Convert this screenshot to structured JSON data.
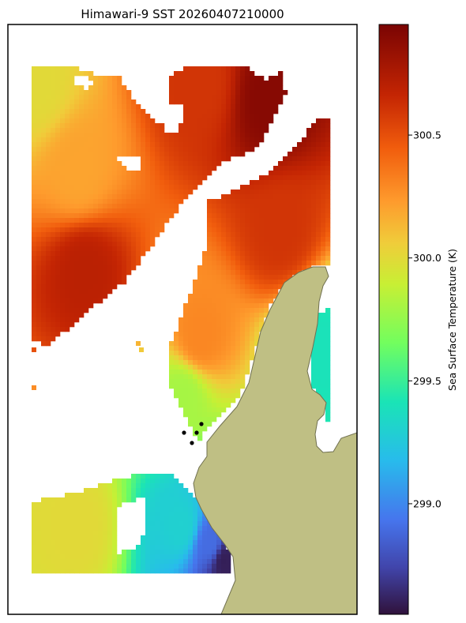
{
  "chart_data": {
    "type": "heatmap",
    "title": "Himawari-9 SST 20260407210000",
    "colorbar": {
      "label": "Sea Surface Temperature (K)",
      "range": [
        298.55,
        300.95
      ],
      "ticks": [
        {
          "value": 299.0,
          "label": "299.0"
        },
        {
          "value": 299.5,
          "label": "299.5"
        },
        {
          "value": 300.0,
          "label": "300.0"
        },
        {
          "value": 300.5,
          "label": "300.5"
        }
      ],
      "colormap": "turbo"
    },
    "field_samples": [
      {
        "lon_frac": 0.08,
        "lat_frac": 0.1,
        "value": 300.0
      },
      {
        "lon_frac": 0.2,
        "lat_frac": 0.25,
        "value": 300.2
      },
      {
        "lon_frac": 0.22,
        "lat_frac": 0.42,
        "value": 300.7
      },
      {
        "lon_frac": 0.55,
        "lat_frac": 0.1,
        "value": 300.6
      },
      {
        "lon_frac": 0.75,
        "lat_frac": 0.13,
        "value": 300.9
      },
      {
        "lon_frac": 0.78,
        "lat_frac": 0.35,
        "value": 300.6
      },
      {
        "lon_frac": 0.55,
        "lat_frac": 0.53,
        "value": 300.3
      },
      {
        "lon_frac": 0.5,
        "lat_frac": 0.63,
        "value": 299.8
      },
      {
        "lon_frac": 0.9,
        "lat_frac": 0.55,
        "value": 299.4
      },
      {
        "lon_frac": 0.2,
        "lat_frac": 0.85,
        "value": 300.0
      },
      {
        "lon_frac": 0.5,
        "lat_frac": 0.85,
        "value": 299.3
      },
      {
        "lon_frac": 0.58,
        "lat_frac": 0.88,
        "value": 298.9
      },
      {
        "lon_frac": 0.62,
        "lat_frac": 0.91,
        "value": 298.6
      }
    ],
    "markers": "black points near coast",
    "land_color": "#bfbf84",
    "grid": false
  }
}
